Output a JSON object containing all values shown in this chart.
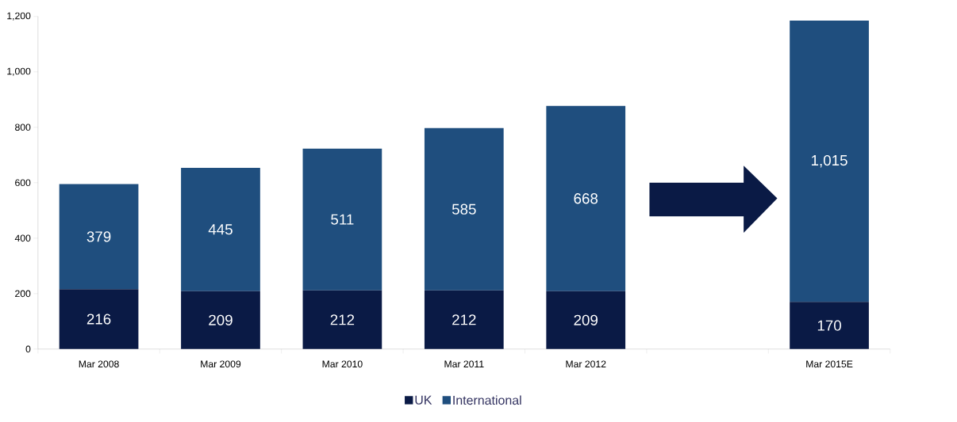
{
  "chart_data": {
    "type": "bar",
    "stacked": true,
    "categories": [
      "Mar 2008",
      "Mar 2009",
      "Mar 2010",
      "Mar 2011",
      "Mar 2012",
      null,
      "Mar 2015E"
    ],
    "series": [
      {
        "name": "UK",
        "color": "#0a1a45",
        "values": [
          216,
          209,
          212,
          212,
          209,
          null,
          170
        ],
        "value_labels": [
          "216",
          "209",
          "212",
          "212",
          "209",
          null,
          "170"
        ]
      },
      {
        "name": "International",
        "color": "#1f4e7e",
        "values": [
          379,
          445,
          511,
          585,
          668,
          null,
          1015
        ],
        "value_labels": [
          "379",
          "445",
          "511",
          "585",
          "668",
          null,
          "1,015"
        ]
      }
    ],
    "ylim": [
      0,
      1200
    ],
    "yticks": [
      0,
      200,
      400,
      600,
      800,
      {
        "value": 1000,
        "label": "1,000"
      },
      {
        "value": 1200,
        "label": "1,200"
      }
    ],
    "grid": false,
    "legend": "bottom"
  }
}
